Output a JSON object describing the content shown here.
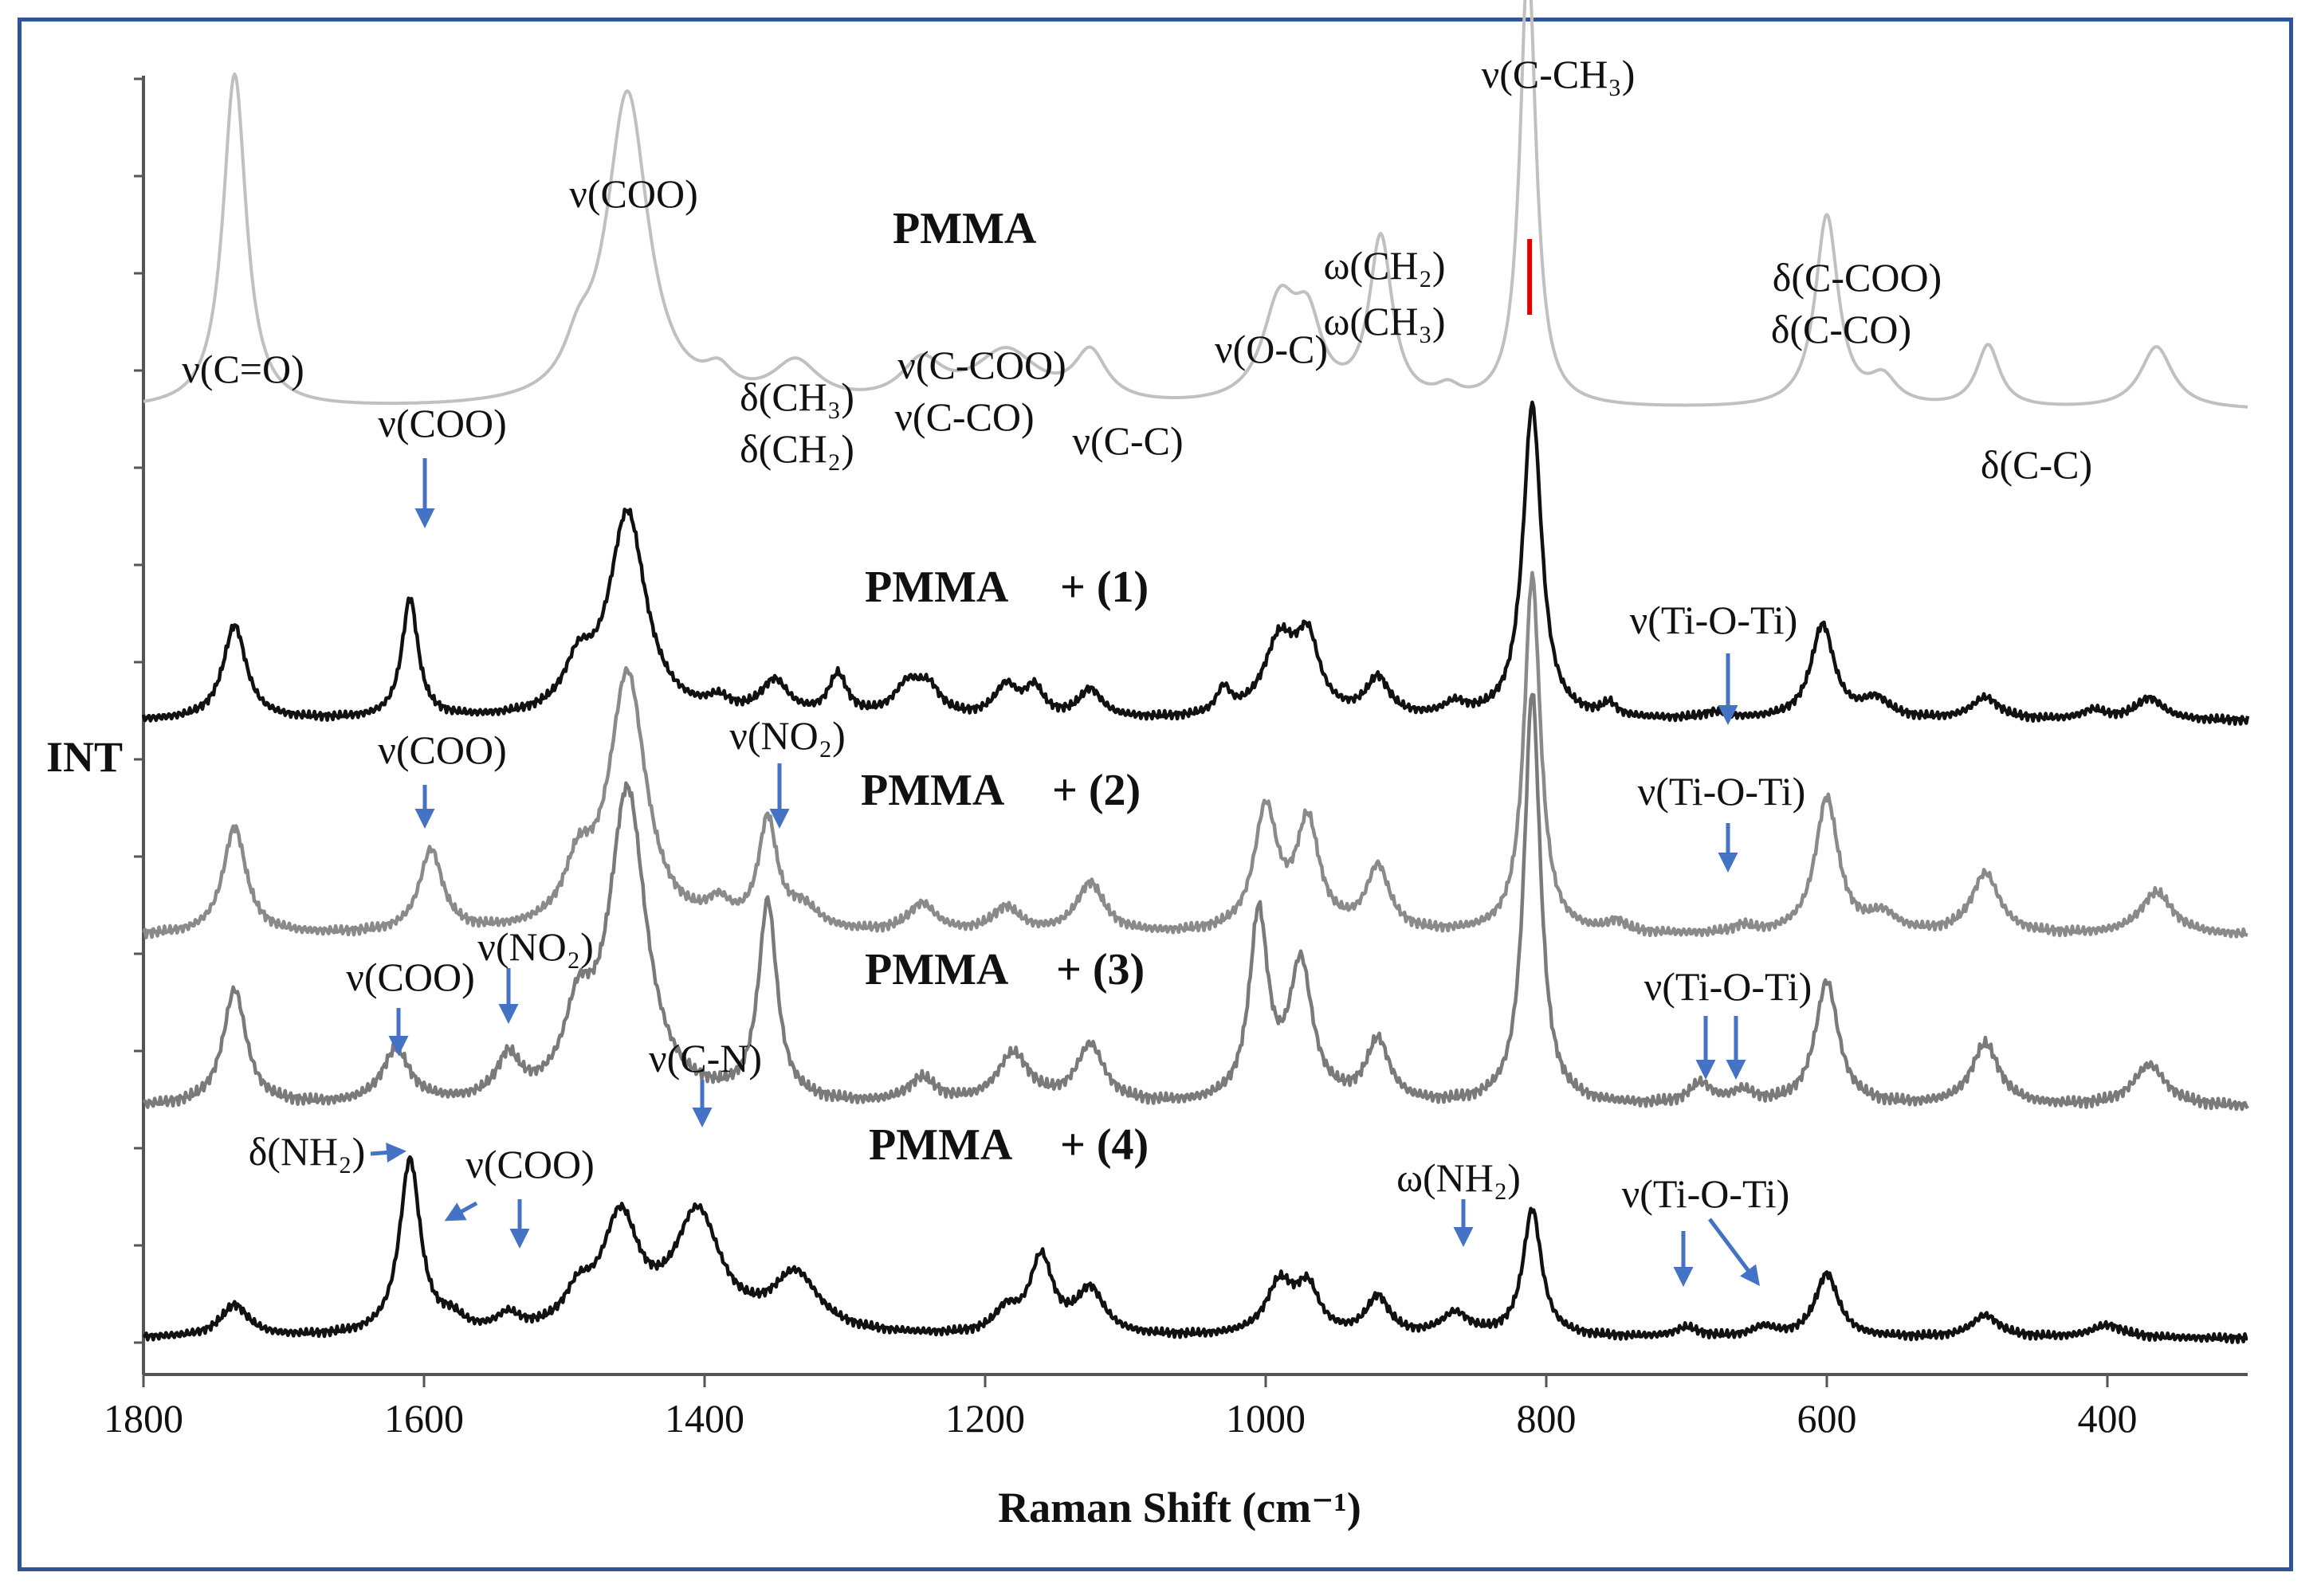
{
  "chart_data": {
    "type": "line",
    "title": "",
    "xlabel": "Raman Shift (cm⁻¹)",
    "ylabel": "INT",
    "xlim": [
      1800,
      300
    ],
    "x_reversed": true,
    "x_ticks": [
      1800,
      1600,
      1400,
      1200,
      1000,
      800,
      600,
      400
    ],
    "x_tick_labels": [
      "1800",
      "1600",
      "1400",
      "1200",
      "1000",
      "800",
      "600",
      "400"
    ],
    "colors": {
      "frame": "#2f5597",
      "arrow": "#4472c4",
      "marker": "#e00000",
      "pmma": "#c0c0c0",
      "pmma_1": "#111111",
      "pmma_2": "#8a8a8a",
      "pmma_3": "#7a7a7a",
      "pmma_4": "#111111"
    },
    "series": [
      {
        "name": "PMMA",
        "label_text": "PMMA",
        "color": "#c0c0c0",
        "baseline": 0.33,
        "peaks": [
          [
            1735,
            0.75,
            10
          ],
          [
            1490,
            0.08,
            12
          ],
          [
            1455,
            0.7,
            18
          ],
          [
            1390,
            0.05,
            12
          ],
          [
            1335,
            0.09,
            20
          ],
          [
            1245,
            0.09,
            18
          ],
          [
            1185,
            0.12,
            28
          ],
          [
            1125,
            0.11,
            14
          ],
          [
            990,
            0.22,
            15
          ],
          [
            970,
            0.16,
            12
          ],
          [
            918,
            0.37,
            10
          ],
          [
            870,
            0.03,
            10
          ],
          [
            813,
            1.0,
            7
          ],
          [
            600,
            0.43,
            10
          ],
          [
            560,
            0.06,
            12
          ],
          [
            485,
            0.14,
            10
          ],
          [
            365,
            0.14,
            14
          ]
        ]
      },
      {
        "name": "PMMA + (1)",
        "label_text": "PMMA",
        "suffix": "+ (1)",
        "color": "#111111",
        "baseline": 0.0,
        "peaks": [
          [
            1735,
            0.3,
            10
          ],
          [
            1610,
            0.38,
            7
          ],
          [
            1490,
            0.14,
            12
          ],
          [
            1455,
            0.65,
            16
          ],
          [
            1390,
            0.04,
            10
          ],
          [
            1350,
            0.11,
            12
          ],
          [
            1305,
            0.13,
            8
          ],
          [
            1255,
            0.1,
            12
          ],
          [
            1240,
            0.08,
            10
          ],
          [
            1185,
            0.1,
            10
          ],
          [
            1165,
            0.09,
            8
          ],
          [
            1125,
            0.09,
            10
          ],
          [
            1030,
            0.08,
            6
          ],
          [
            990,
            0.24,
            14
          ],
          [
            970,
            0.22,
            10
          ],
          [
            920,
            0.12,
            10
          ],
          [
            865,
            0.04,
            10
          ],
          [
            810,
            1.0,
            8
          ],
          [
            755,
            0.04,
            6
          ],
          [
            680,
            0.02,
            10
          ],
          [
            603,
            0.3,
            10
          ],
          [
            565,
            0.06,
            12
          ],
          [
            487,
            0.07,
            12
          ],
          [
            410,
            0.03,
            10
          ],
          [
            370,
            0.07,
            12
          ]
        ]
      },
      {
        "name": "PMMA + (2)",
        "label_text": "PMMA",
        "suffix": "+ (2)",
        "color": "#8a8a8a",
        "baseline": 0.0,
        "peaks": [
          [
            1735,
            0.3,
            10
          ],
          [
            1595,
            0.23,
            10
          ],
          [
            1490,
            0.15,
            12
          ],
          [
            1455,
            0.72,
            16
          ],
          [
            1390,
            0.06,
            10
          ],
          [
            1355,
            0.3,
            8
          ],
          [
            1330,
            0.06,
            14
          ],
          [
            1245,
            0.08,
            12
          ],
          [
            1185,
            0.07,
            12
          ],
          [
            1125,
            0.14,
            12
          ],
          [
            1000,
            0.34,
            10
          ],
          [
            970,
            0.3,
            10
          ],
          [
            920,
            0.18,
            10
          ],
          [
            810,
            1.0,
            7
          ],
          [
            750,
            0.03,
            8
          ],
          [
            660,
            0.02,
            8
          ],
          [
            600,
            0.38,
            10
          ],
          [
            560,
            0.05,
            12
          ],
          [
            487,
            0.17,
            12
          ],
          [
            365,
            0.12,
            14
          ]
        ]
      },
      {
        "name": "PMMA + (3)",
        "label_text": "PMMA",
        "suffix": "+ (3)",
        "color": "#7a7a7a",
        "baseline": 0.0,
        "peaks": [
          [
            1735,
            0.28,
            10
          ],
          [
            1620,
            0.13,
            12
          ],
          [
            1540,
            0.1,
            10
          ],
          [
            1490,
            0.18,
            12
          ],
          [
            1455,
            0.75,
            16
          ],
          [
            1355,
            0.48,
            8
          ],
          [
            1245,
            0.06,
            12
          ],
          [
            1180,
            0.12,
            14
          ],
          [
            1125,
            0.14,
            12
          ],
          [
            1005,
            0.45,
            8
          ],
          [
            975,
            0.33,
            10
          ],
          [
            920,
            0.15,
            10
          ],
          [
            810,
            1.0,
            7
          ],
          [
            690,
            0.05,
            10
          ],
          [
            660,
            0.03,
            10
          ],
          [
            600,
            0.3,
            10
          ],
          [
            487,
            0.15,
            12
          ],
          [
            370,
            0.1,
            14
          ]
        ]
      },
      {
        "name": "PMMA + (4)",
        "label_text": "PMMA",
        "suffix": "+ (4)",
        "color": "#111111",
        "baseline": 0.0,
        "peaks": [
          [
            1735,
            0.1,
            12
          ],
          [
            1610,
            0.55,
            9
          ],
          [
            1580,
            0.04,
            10
          ],
          [
            1540,
            0.05,
            10
          ],
          [
            1490,
            0.1,
            12
          ],
          [
            1460,
            0.35,
            16
          ],
          [
            1405,
            0.37,
            20
          ],
          [
            1335,
            0.18,
            20
          ],
          [
            1185,
            0.07,
            10
          ],
          [
            1160,
            0.24,
            10
          ],
          [
            1125,
            0.14,
            12
          ],
          [
            990,
            0.16,
            12
          ],
          [
            970,
            0.14,
            10
          ],
          [
            920,
            0.12,
            10
          ],
          [
            865,
            0.07,
            12
          ],
          [
            810,
            0.4,
            8
          ],
          [
            700,
            0.03,
            10
          ],
          [
            645,
            0.03,
            10
          ],
          [
            600,
            0.2,
            10
          ],
          [
            487,
            0.07,
            12
          ],
          [
            400,
            0.04,
            14
          ]
        ]
      }
    ],
    "annotations": [
      {
        "label": "ν(COO)",
        "series": "PMMA",
        "x": 1455
      },
      {
        "label": "PMMA",
        "series": "PMMA",
        "x": 1315
      },
      {
        "label": "ν(C-CH₃)",
        "series": "PMMA",
        "x": 813
      },
      {
        "label": "ω(CH₂)",
        "series": "PMMA",
        "x": 918
      },
      {
        "label": "ω(CH₃)",
        "series": "PMMA",
        "x": 918
      },
      {
        "label": "δ(C-COO)",
        "series": "PMMA",
        "x": 600
      },
      {
        "label": "δ(C-CO)",
        "series": "PMMA",
        "x": 600
      },
      {
        "label": "ν(C=O)",
        "series": "PMMA",
        "x": 1735
      },
      {
        "label": "ν(O-C)",
        "series": "PMMA",
        "x": 990
      },
      {
        "label": "δ(CH₃)",
        "series": "PMMA",
        "x": 1335
      },
      {
        "label": "δ(CH₂)",
        "series": "PMMA",
        "x": 1335
      },
      {
        "label": "ν(C-COO)",
        "series": "PMMA",
        "x": 1185
      },
      {
        "label": "ν(C-CO)",
        "series": "PMMA",
        "x": 1185
      },
      {
        "label": "ν(C-C)",
        "series": "PMMA",
        "x": 1125
      },
      {
        "label": "δ(C-C)",
        "series": "PMMA",
        "x": 485
      },
      {
        "label": "ν(COO)",
        "series": "PMMA + (1)",
        "x": 1610
      },
      {
        "label": "ν(Ti-O-Ti)",
        "series": "PMMA + (1)",
        "x": 675
      },
      {
        "label": "ν(COO)",
        "series": "PMMA + (2)",
        "x": 1595
      },
      {
        "label": "ν(NO₂)",
        "series": "PMMA + (2)",
        "x": 1355
      },
      {
        "label": "ν(Ti-O-Ti)",
        "series": "PMMA + (2)",
        "x": 675
      },
      {
        "label": "ν(COO)",
        "series": "PMMA + (3)",
        "x": 1620
      },
      {
        "label": "ν(NO₂)",
        "series": "PMMA + (3)",
        "x": 1545
      },
      {
        "label": "ν(Ti-O-Ti)",
        "series": "PMMA + (3)",
        "x": 680
      },
      {
        "label": "ν(C-N)",
        "series": "PMMA + (4)",
        "x": 1405
      },
      {
        "label": "δ(NH₂)",
        "series": "PMMA + (4)",
        "x": 1620
      },
      {
        "label": "ν(COO)",
        "series": "PMMA + (4)",
        "x": 1560
      },
      {
        "label": "ω(NH₂)",
        "series": "PMMA + (4)",
        "x": 865
      },
      {
        "label": "ν(Ti-O-Ti)",
        "series": "PMMA + (4)",
        "x": 670
      }
    ]
  }
}
